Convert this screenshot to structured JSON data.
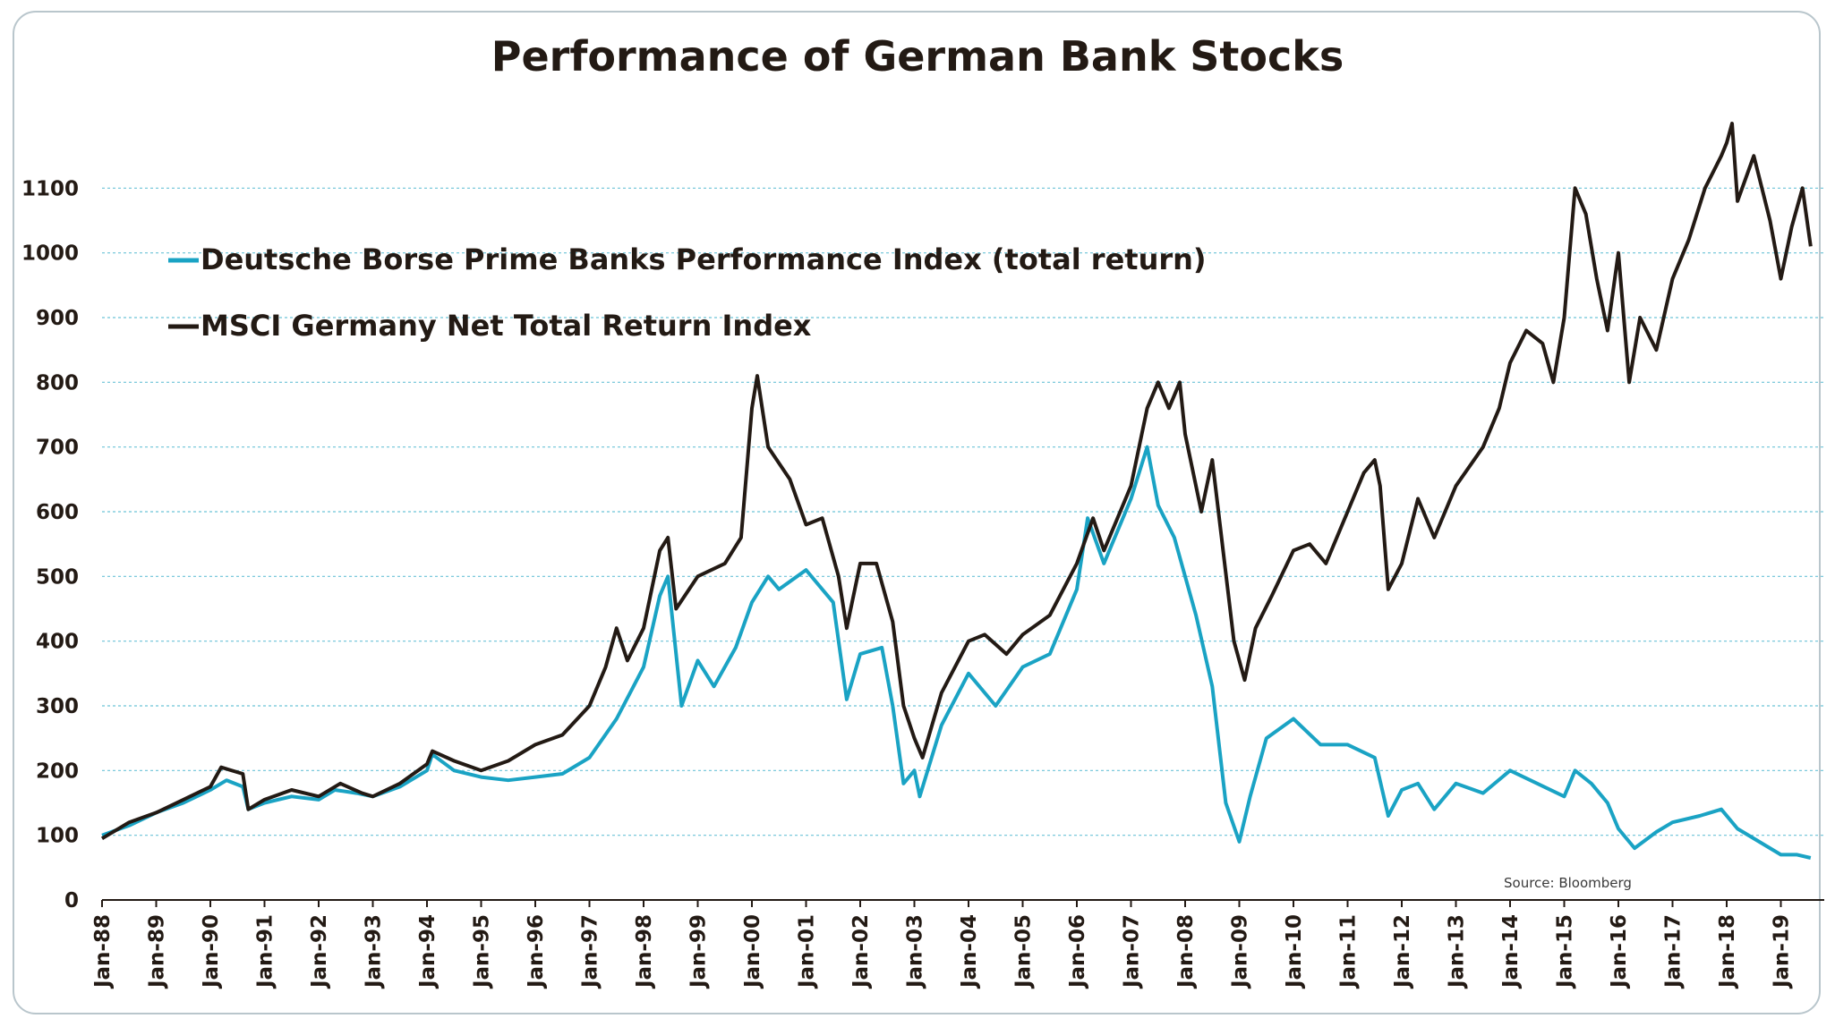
{
  "chart_data": {
    "type": "line",
    "title": "Performance of German Bank Stocks",
    "source": "Source: Bloomberg",
    "xlabel": "",
    "ylabel": "",
    "ylim": [
      0,
      1200
    ],
    "yticks": [
      0,
      100,
      200,
      300,
      400,
      500,
      600,
      700,
      800,
      900,
      1000,
      1100
    ],
    "x_ticks": [
      "Jan-88",
      "Jan-89",
      "Jan-90",
      "Jan-91",
      "Jan-92",
      "Jan-93",
      "Jan-94",
      "Jan-95",
      "Jan-96",
      "Jan-97",
      "Jan-98",
      "Jan-99",
      "Jan-00",
      "Jan-01",
      "Jan-02",
      "Jan-03",
      "Jan-04",
      "Jan-05",
      "Jan-06",
      "Jan-07",
      "Jan-08",
      "Jan-09",
      "Jan-10",
      "Jan-11",
      "Jan-12",
      "Jan-13",
      "Jan-14",
      "Jan-15",
      "Jan-16",
      "Jan-17",
      "Jan-18",
      "Jan-19"
    ],
    "grid": true,
    "legend_placement": "top-left",
    "x_range": [
      1988.0,
      2019.55
    ],
    "series": [
      {
        "name": "Deutsche Borse Prime Banks Performance Index (total return)",
        "color": "#1aa3c4",
        "points": [
          [
            1988.0,
            100
          ],
          [
            1988.5,
            115
          ],
          [
            1989.0,
            135
          ],
          [
            1989.5,
            150
          ],
          [
            1990.0,
            170
          ],
          [
            1990.3,
            185
          ],
          [
            1990.6,
            175
          ],
          [
            1990.7,
            140
          ],
          [
            1991.0,
            150
          ],
          [
            1991.5,
            160
          ],
          [
            1992.0,
            155
          ],
          [
            1992.3,
            170
          ],
          [
            1992.7,
            165
          ],
          [
            1993.0,
            160
          ],
          [
            1993.5,
            175
          ],
          [
            1994.0,
            200
          ],
          [
            1994.1,
            225
          ],
          [
            1994.5,
            200
          ],
          [
            1995.0,
            190
          ],
          [
            1995.5,
            185
          ],
          [
            1996.0,
            190
          ],
          [
            1996.5,
            195
          ],
          [
            1997.0,
            220
          ],
          [
            1997.5,
            280
          ],
          [
            1998.0,
            360
          ],
          [
            1998.3,
            470
          ],
          [
            1998.45,
            500
          ],
          [
            1998.6,
            380
          ],
          [
            1998.7,
            300
          ],
          [
            1999.0,
            370
          ],
          [
            1999.3,
            330
          ],
          [
            1999.7,
            390
          ],
          [
            2000.0,
            460
          ],
          [
            2000.3,
            500
          ],
          [
            2000.5,
            480
          ],
          [
            2001.0,
            510
          ],
          [
            2001.5,
            460
          ],
          [
            2001.75,
            310
          ],
          [
            2002.0,
            380
          ],
          [
            2002.4,
            390
          ],
          [
            2002.6,
            300
          ],
          [
            2002.8,
            180
          ],
          [
            2003.0,
            200
          ],
          [
            2003.1,
            160
          ],
          [
            2003.5,
            270
          ],
          [
            2004.0,
            350
          ],
          [
            2004.5,
            300
          ],
          [
            2005.0,
            360
          ],
          [
            2005.5,
            380
          ],
          [
            2006.0,
            480
          ],
          [
            2006.2,
            590
          ],
          [
            2006.5,
            520
          ],
          [
            2007.0,
            620
          ],
          [
            2007.3,
            700
          ],
          [
            2007.5,
            610
          ],
          [
            2007.8,
            560
          ],
          [
            2008.0,
            500
          ],
          [
            2008.2,
            440
          ],
          [
            2008.5,
            330
          ],
          [
            2008.75,
            150
          ],
          [
            2009.0,
            90
          ],
          [
            2009.2,
            160
          ],
          [
            2009.5,
            250
          ],
          [
            2010.0,
            280
          ],
          [
            2010.5,
            240
          ],
          [
            2011.0,
            240
          ],
          [
            2011.5,
            220
          ],
          [
            2011.75,
            130
          ],
          [
            2012.0,
            170
          ],
          [
            2012.3,
            180
          ],
          [
            2012.6,
            140
          ],
          [
            2013.0,
            180
          ],
          [
            2013.5,
            165
          ],
          [
            2014.0,
            200
          ],
          [
            2014.5,
            180
          ],
          [
            2015.0,
            160
          ],
          [
            2015.2,
            200
          ],
          [
            2015.5,
            180
          ],
          [
            2015.8,
            150
          ],
          [
            2016.0,
            110
          ],
          [
            2016.3,
            80
          ],
          [
            2016.7,
            105
          ],
          [
            2017.0,
            120
          ],
          [
            2017.5,
            130
          ],
          [
            2017.9,
            140
          ],
          [
            2018.2,
            110
          ],
          [
            2018.6,
            90
          ],
          [
            2019.0,
            70
          ],
          [
            2019.3,
            70
          ],
          [
            2019.55,
            65
          ]
        ]
      },
      {
        "name": "MSCI Germany Net Total Return Index",
        "color": "#231a14",
        "points": [
          [
            1988.0,
            95
          ],
          [
            1988.5,
            120
          ],
          [
            1989.0,
            135
          ],
          [
            1989.5,
            155
          ],
          [
            1990.0,
            175
          ],
          [
            1990.2,
            205
          ],
          [
            1990.6,
            195
          ],
          [
            1990.7,
            140
          ],
          [
            1991.0,
            155
          ],
          [
            1991.5,
            170
          ],
          [
            1992.0,
            160
          ],
          [
            1992.4,
            180
          ],
          [
            1992.8,
            165
          ],
          [
            1993.0,
            160
          ],
          [
            1993.5,
            180
          ],
          [
            1994.0,
            210
          ],
          [
            1994.1,
            230
          ],
          [
            1994.5,
            215
          ],
          [
            1995.0,
            200
          ],
          [
            1995.5,
            215
          ],
          [
            1996.0,
            240
          ],
          [
            1996.5,
            255
          ],
          [
            1997.0,
            300
          ],
          [
            1997.3,
            360
          ],
          [
            1997.5,
            420
          ],
          [
            1997.7,
            370
          ],
          [
            1998.0,
            420
          ],
          [
            1998.3,
            540
          ],
          [
            1998.45,
            560
          ],
          [
            1998.6,
            450
          ],
          [
            1999.0,
            500
          ],
          [
            1999.5,
            520
          ],
          [
            1999.8,
            560
          ],
          [
            2000.0,
            760
          ],
          [
            2000.1,
            810
          ],
          [
            2000.3,
            700
          ],
          [
            2000.7,
            650
          ],
          [
            2001.0,
            580
          ],
          [
            2001.3,
            590
          ],
          [
            2001.6,
            500
          ],
          [
            2001.75,
            420
          ],
          [
            2002.0,
            520
          ],
          [
            2002.3,
            520
          ],
          [
            2002.6,
            430
          ],
          [
            2002.8,
            300
          ],
          [
            2003.0,
            250
          ],
          [
            2003.15,
            220
          ],
          [
            2003.5,
            320
          ],
          [
            2004.0,
            400
          ],
          [
            2004.3,
            410
          ],
          [
            2004.7,
            380
          ],
          [
            2005.0,
            410
          ],
          [
            2005.5,
            440
          ],
          [
            2006.0,
            520
          ],
          [
            2006.3,
            590
          ],
          [
            2006.5,
            540
          ],
          [
            2007.0,
            640
          ],
          [
            2007.3,
            760
          ],
          [
            2007.5,
            800
          ],
          [
            2007.7,
            760
          ],
          [
            2007.9,
            800
          ],
          [
            2008.0,
            720
          ],
          [
            2008.3,
            600
          ],
          [
            2008.5,
            680
          ],
          [
            2008.9,
            400
          ],
          [
            2009.1,
            340
          ],
          [
            2009.3,
            420
          ],
          [
            2009.6,
            470
          ],
          [
            2010.0,
            540
          ],
          [
            2010.3,
            550
          ],
          [
            2010.6,
            520
          ],
          [
            2011.0,
            600
          ],
          [
            2011.3,
            660
          ],
          [
            2011.5,
            680
          ],
          [
            2011.6,
            640
          ],
          [
            2011.75,
            480
          ],
          [
            2012.0,
            520
          ],
          [
            2012.3,
            620
          ],
          [
            2012.6,
            560
          ],
          [
            2013.0,
            640
          ],
          [
            2013.5,
            700
          ],
          [
            2013.8,
            760
          ],
          [
            2014.0,
            830
          ],
          [
            2014.3,
            880
          ],
          [
            2014.6,
            860
          ],
          [
            2014.8,
            800
          ],
          [
            2015.0,
            900
          ],
          [
            2015.2,
            1100
          ],
          [
            2015.4,
            1060
          ],
          [
            2015.6,
            960
          ],
          [
            2015.8,
            880
          ],
          [
            2016.0,
            1000
          ],
          [
            2016.2,
            800
          ],
          [
            2016.4,
            900
          ],
          [
            2016.7,
            850
          ],
          [
            2017.0,
            960
          ],
          [
            2017.3,
            1020
          ],
          [
            2017.6,
            1100
          ],
          [
            2017.9,
            1150
          ],
          [
            2018.0,
            1170
          ],
          [
            2018.1,
            1200
          ],
          [
            2018.2,
            1080
          ],
          [
            2018.5,
            1150
          ],
          [
            2018.8,
            1050
          ],
          [
            2019.0,
            960
          ],
          [
            2019.2,
            1040
          ],
          [
            2019.4,
            1100
          ],
          [
            2019.55,
            1010
          ]
        ]
      }
    ]
  }
}
